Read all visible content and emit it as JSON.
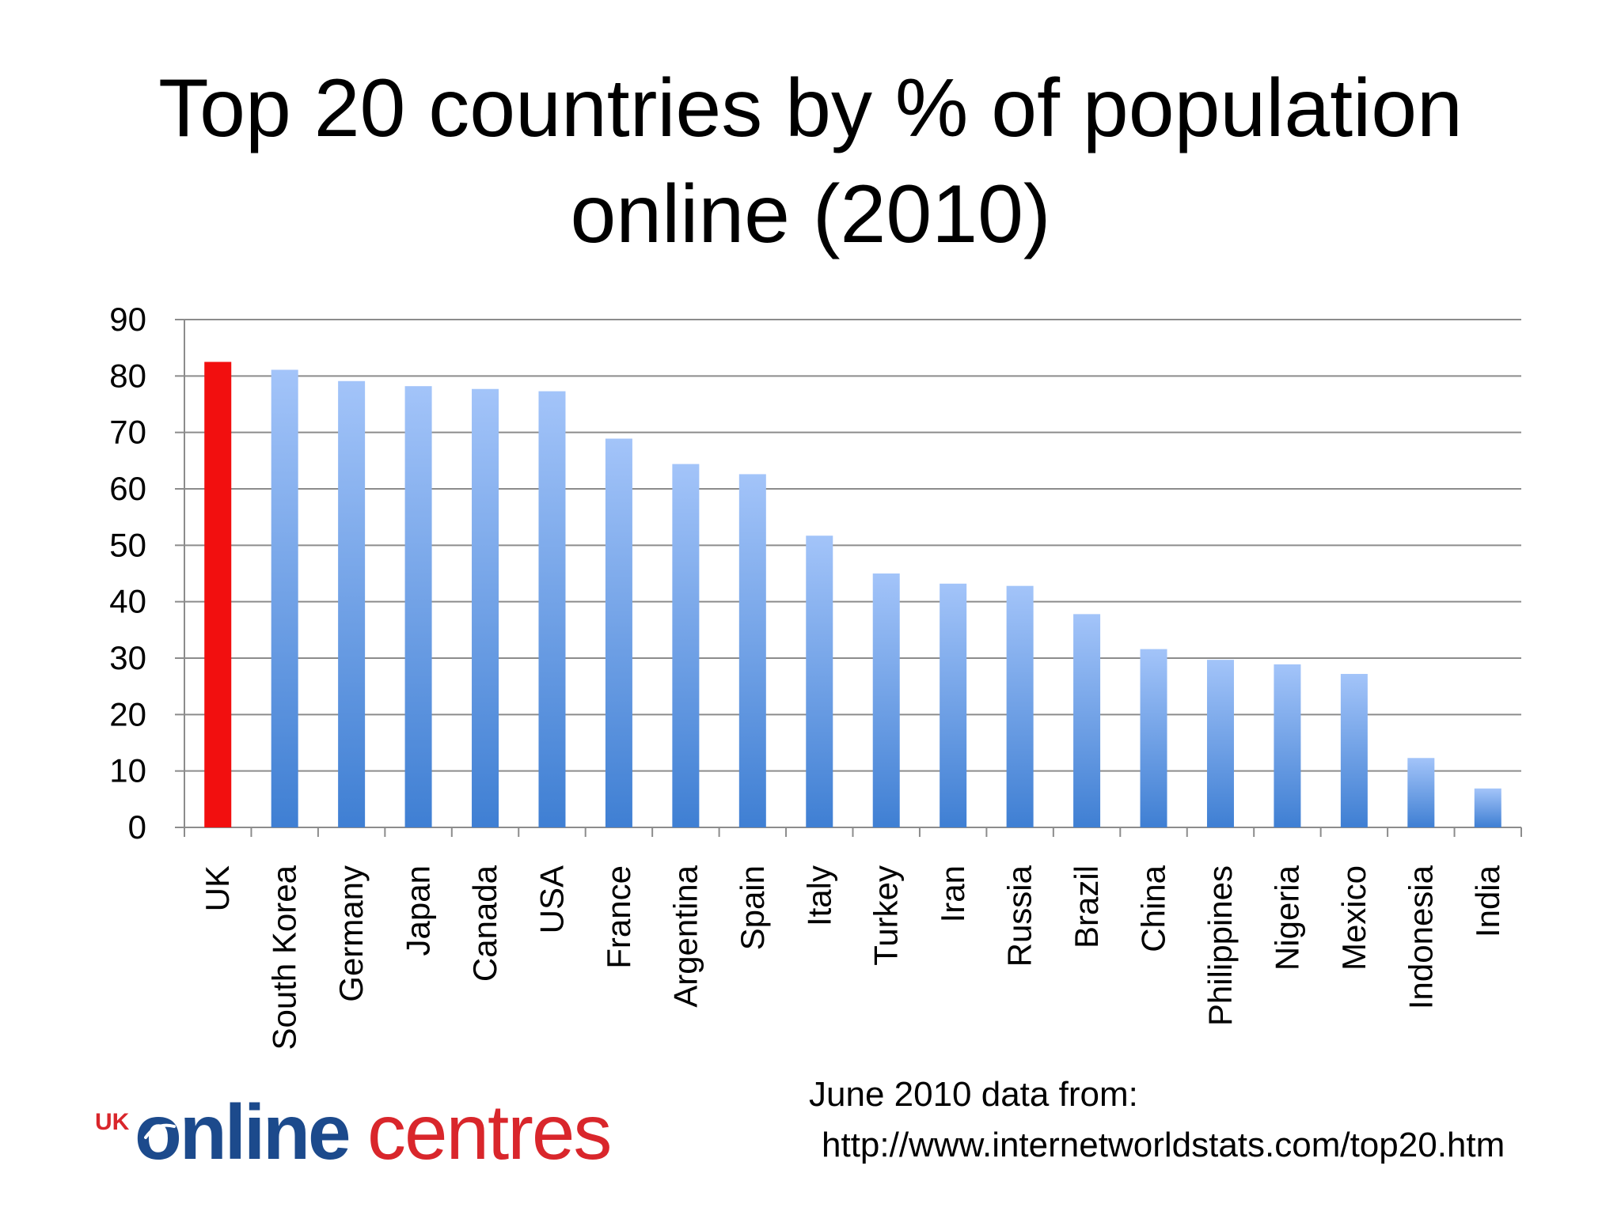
{
  "title_lines": [
    "Top 20 countries by % of population",
    "online (2010)"
  ],
  "source": {
    "line1": "June 2010 data from:",
    "line2": "http://www.internetworldstats.com/top20.htm"
  },
  "logo": {
    "prefix": "UK",
    "word1": "online",
    "word2": "centres",
    "colors": {
      "prefix": "#d9262b",
      "word1": "#1c4a8c",
      "word2": "#d9262b"
    }
  },
  "chart_data": {
    "type": "bar",
    "title": "",
    "xlabel": "",
    "ylabel": "",
    "ylim": [
      0,
      90
    ],
    "yticks": [
      0,
      10,
      20,
      30,
      40,
      50,
      60,
      70,
      80,
      90
    ],
    "grid": true,
    "categories": [
      "UK",
      "South Korea",
      "Germany",
      "Japan",
      "Canada",
      "USA",
      "France",
      "Argentina",
      "Spain",
      "Italy",
      "Turkey",
      "Iran",
      "Russia",
      "Brazil",
      "China",
      "Philippines",
      "Nigeria",
      "Mexico",
      "Indonesia",
      "India"
    ],
    "values": [
      82.5,
      81.1,
      79.1,
      78.2,
      77.7,
      77.3,
      68.9,
      64.4,
      62.6,
      51.7,
      45.0,
      43.2,
      42.8,
      37.8,
      31.6,
      29.7,
      28.9,
      27.2,
      12.3,
      6.9
    ],
    "highlight_index": 0,
    "colors": {
      "highlight": "#f20f0f",
      "bar_top": "#a3c4f9",
      "bar_bottom": "#3f7fd3",
      "grid": "#8c8c8c",
      "axis": "#8c8c8c"
    }
  }
}
